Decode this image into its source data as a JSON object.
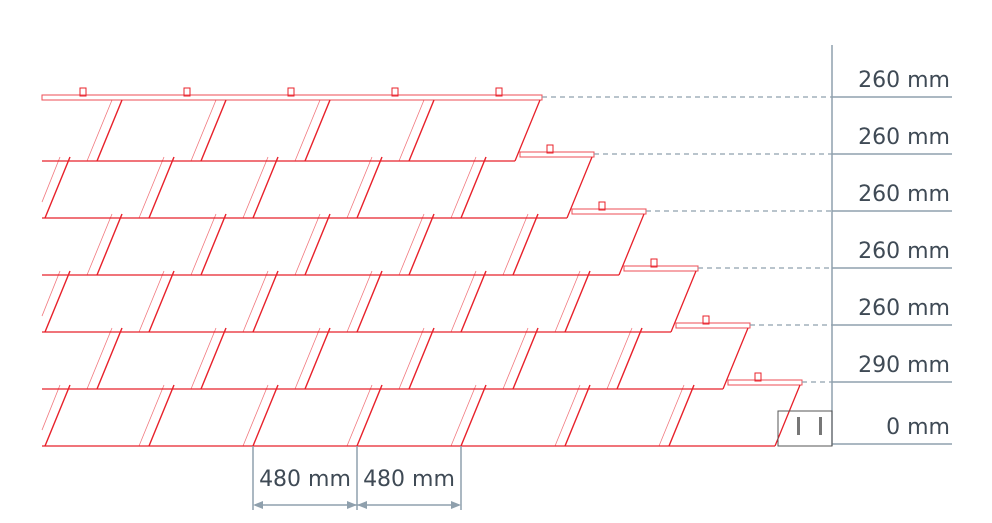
{
  "diagram": {
    "colors": {
      "tile": "#e8202a",
      "dimension": "#8fa0ad",
      "text": "#3f4a55"
    },
    "vertical_spacings": [
      "260 mm",
      "260 mm",
      "260 mm",
      "260 mm",
      "260 mm",
      "290 mm",
      "0 mm"
    ],
    "horizontal_spacings": [
      "480 mm",
      "480 mm"
    ]
  }
}
